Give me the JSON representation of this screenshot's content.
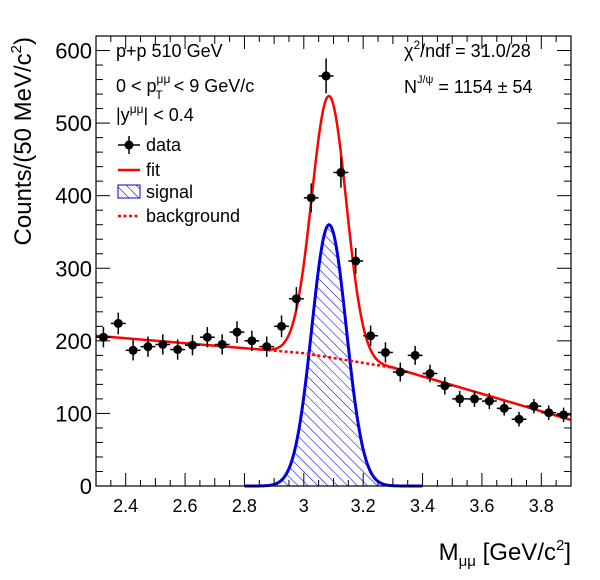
{
  "chart_data": {
    "type": "scatter",
    "xlabel_base": "M",
    "xlabel_sub": "μμ",
    "xlabel_unit": " [GeV/c",
    "xlabel_sup": "2",
    "xlabel_end": "]",
    "ylabel_main": "Counts/(50 MeV/c",
    "ylabel_sup": "2",
    "ylabel_end": ")",
    "xlim": [
      2.3,
      3.9
    ],
    "ylim": [
      0,
      620
    ],
    "xticks": [
      2.4,
      2.6,
      2.8,
      3.0,
      3.2,
      3.4,
      3.6,
      3.8
    ],
    "xtick_labels": [
      "2.4",
      "2.6",
      "2.8",
      "3",
      "3.2",
      "3.4",
      "3.6",
      "3.8"
    ],
    "yticks": [
      0,
      100,
      200,
      300,
      400,
      500,
      600
    ],
    "ytick_labels": [
      "0",
      "100",
      "200",
      "300",
      "400",
      "500",
      "600"
    ],
    "info": {
      "line1": "p+p 510 GeV",
      "line2_pre": "0 < p",
      "line2_sup": "μμ",
      "line2_sub": "T",
      "line2_post": " < 9 GeV/c",
      "line3_pre": "|y",
      "line3_sup": "μμ",
      "line3_post": "| < 0.4"
    },
    "stats": {
      "chi2_pre": "χ",
      "chi2_sup": "2",
      "chi2_post": "/ndf = 31.0/28",
      "n_pre": "N",
      "n_sup": "J/ψ",
      "n_post": " = 1154 ± 54"
    },
    "legend": {
      "data": "data",
      "fit": "fit",
      "signal": "signal",
      "background": "background"
    },
    "series": [
      {
        "name": "data",
        "x": [
          2.325,
          2.375,
          2.425,
          2.475,
          2.525,
          2.575,
          2.625,
          2.675,
          2.725,
          2.775,
          2.825,
          2.875,
          2.925,
          2.975,
          3.025,
          3.075,
          3.125,
          3.175,
          3.225,
          3.275,
          3.325,
          3.375,
          3.425,
          3.475,
          3.525,
          3.575,
          3.625,
          3.675,
          3.725,
          3.775,
          3.825,
          3.875
        ],
        "y": [
          205,
          224,
          187,
          192,
          195,
          188,
          194,
          205,
          195,
          212,
          200,
          192,
          220,
          258,
          397,
          565,
          432,
          310,
          207,
          184,
          157,
          180,
          155,
          138,
          120,
          120,
          117,
          107,
          92,
          110,
          101,
          98
        ],
        "err": [
          14,
          15,
          14,
          14,
          14,
          14,
          14,
          14,
          14,
          15,
          14,
          14,
          15,
          16,
          20,
          24,
          21,
          18,
          14,
          14,
          13,
          13,
          12,
          12,
          11,
          11,
          11,
          10,
          10,
          10,
          10,
          10
        ]
      },
      {
        "name": "fit",
        "model": "background + gaussian",
        "background_points": [
          [
            2.3,
            207
          ],
          [
            3.0,
            183
          ],
          [
            3.3,
            163
          ],
          [
            3.9,
            91
          ]
        ],
        "gaussian": {
          "mean": 3.085,
          "sigma": 0.058,
          "amplitude": 360
        }
      },
      {
        "name": "signal",
        "range": [
          2.8,
          3.4
        ],
        "gaussian": {
          "mean": 3.085,
          "sigma": 0.058,
          "amplitude": 360
        }
      },
      {
        "name": "background",
        "points": [
          [
            2.3,
            207
          ],
          [
            3.0,
            183
          ],
          [
            3.3,
            163
          ],
          [
            3.9,
            91
          ]
        ]
      }
    ],
    "colors": {
      "data": "#000000",
      "fit": "#ff0000",
      "signal": "#0000e0",
      "background": "#ff0000"
    }
  }
}
